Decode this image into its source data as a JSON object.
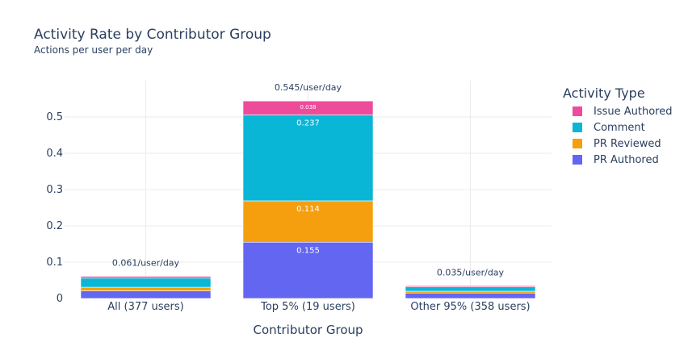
{
  "header": {
    "title": "Activity Rate by Contributor Group",
    "subtitle": "Actions per user per day"
  },
  "legend": {
    "title": "Activity Type",
    "items": [
      {
        "label": "Issue Authored",
        "color": "#ef4b9b"
      },
      {
        "label": "Comment",
        "color": "#0ab6d6"
      },
      {
        "label": "PR Reviewed",
        "color": "#f59f0f"
      },
      {
        "label": "PR Authored",
        "color": "#6366f1"
      }
    ]
  },
  "chart_data": {
    "type": "bar",
    "stacked": true,
    "xlabel": "Contributor Group",
    "ylabel": "",
    "ylim": [
      0,
      0.6
    ],
    "yticks": [
      0,
      0.1,
      0.2,
      0.3,
      0.4,
      0.5
    ],
    "ytick_labels": [
      "0",
      "0.1",
      "0.2",
      "0.3",
      "0.4",
      "0.5"
    ],
    "grid": true,
    "legend_position": "right",
    "categories": [
      "All (377 users)",
      "Top 5% (19 users)",
      "Other 95% (358 users)"
    ],
    "series": [
      {
        "name": "PR Authored",
        "color": "#6366f1",
        "values": [
          0.021,
          0.155,
          0.015
        ],
        "labels": [
          "",
          "0.155",
          ""
        ]
      },
      {
        "name": "PR Reviewed",
        "color": "#f59f0f",
        "values": [
          0.01,
          0.114,
          0.005
        ],
        "labels": [
          "",
          "0.114",
          ""
        ]
      },
      {
        "name": "Comment",
        "color": "#0ab6d6",
        "values": [
          0.025,
          0.237,
          0.012
        ],
        "labels": [
          "",
          "0.237",
          ""
        ]
      },
      {
        "name": "Issue Authored",
        "color": "#ef4b9b",
        "values": [
          0.005,
          0.038,
          0.003
        ],
        "labels": [
          "",
          "0.038",
          ""
        ]
      }
    ],
    "totals": [
      0.061,
      0.545,
      0.035
    ],
    "total_labels": [
      "0.061/user/day",
      "0.545/user/day",
      "0.035/user/day"
    ]
  }
}
